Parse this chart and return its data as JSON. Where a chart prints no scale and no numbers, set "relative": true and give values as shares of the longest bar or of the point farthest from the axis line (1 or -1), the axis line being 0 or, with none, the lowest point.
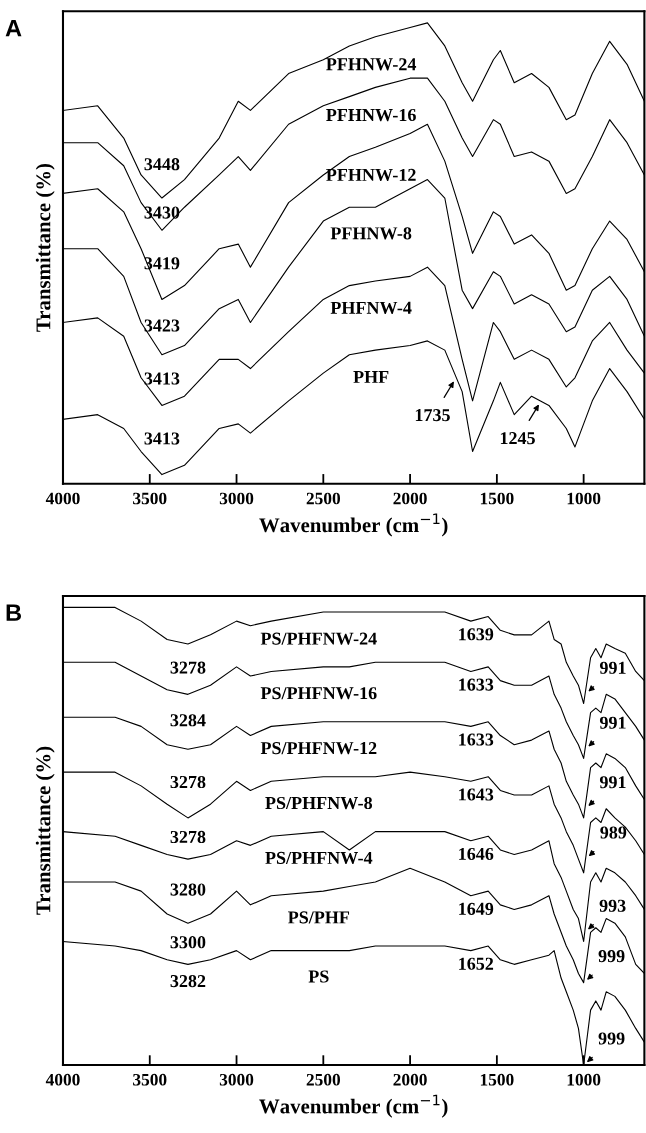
{
  "chart_data": [
    {
      "type": "line",
      "title": "A",
      "xlabel": "Wavenumber (cm$^{−1}$)",
      "ylabel": "Transmittance (%)",
      "relative": true,
      "tick_labels": "x",
      "xlim": [
        4000,
        650
      ],
      "xticks": [
        4000,
        3500,
        3000,
        2500,
        2000,
        1500,
        1000
      ],
      "x": [
        4000,
        3800,
        3650,
        3550,
        3430,
        3300,
        3100,
        2990,
        2920,
        2700,
        2500,
        2350,
        2200,
        2000,
        1900,
        1800,
        1700,
        1640,
        1520,
        1480,
        1400,
        1300,
        1200,
        1100,
        1050,
        950,
        850,
        750,
        650
      ],
      "series": [
        {
          "name": "PFHNW-24",
          "color": "#000000",
          "values": [
            0.81,
            0.82,
            0.75,
            0.67,
            0.62,
            0.66,
            0.75,
            0.83,
            0.81,
            0.89,
            0.92,
            0.95,
            0.97,
            0.99,
            1.0,
            0.95,
            0.87,
            0.83,
            0.92,
            0.94,
            0.87,
            0.89,
            0.86,
            0.79,
            0.8,
            0.89,
            0.96,
            0.91,
            0.83
          ]
        },
        {
          "name": "PFHNW-16",
          "color": "#000000",
          "values": [
            0.74,
            0.74,
            0.69,
            0.61,
            0.55,
            0.6,
            0.67,
            0.71,
            0.68,
            0.78,
            0.82,
            0.84,
            0.86,
            0.88,
            0.88,
            0.83,
            0.75,
            0.71,
            0.79,
            0.78,
            0.71,
            0.72,
            0.7,
            0.63,
            0.64,
            0.71,
            0.79,
            0.74,
            0.67
          ]
        },
        {
          "name": "PFHNW-12",
          "color": "#000000",
          "values": [
            0.63,
            0.64,
            0.59,
            0.51,
            0.4,
            0.43,
            0.51,
            0.52,
            0.47,
            0.61,
            0.67,
            0.71,
            0.73,
            0.76,
            0.78,
            0.7,
            0.58,
            0.5,
            0.59,
            0.58,
            0.52,
            0.54,
            0.5,
            0.42,
            0.43,
            0.51,
            0.57,
            0.53,
            0.46
          ]
        },
        {
          "name": "PFHNW-8",
          "color": "#000000",
          "values": [
            0.51,
            0.51,
            0.45,
            0.35,
            0.28,
            0.3,
            0.38,
            0.4,
            0.35,
            0.47,
            0.57,
            0.6,
            0.6,
            0.64,
            0.66,
            0.62,
            0.42,
            0.38,
            0.46,
            0.45,
            0.39,
            0.41,
            0.39,
            0.33,
            0.34,
            0.42,
            0.45,
            0.4,
            0.32
          ]
        },
        {
          "name": "PHFNW-4",
          "color": "#000000",
          "values": [
            0.35,
            0.36,
            0.32,
            0.23,
            0.17,
            0.19,
            0.27,
            0.27,
            0.25,
            0.33,
            0.4,
            0.43,
            0.44,
            0.45,
            0.47,
            0.43,
            0.27,
            0.18,
            0.35,
            0.33,
            0.27,
            0.29,
            0.27,
            0.21,
            0.23,
            0.31,
            0.35,
            0.29,
            0.24
          ]
        },
        {
          "name": "PHF",
          "color": "#000000",
          "values": [
            0.14,
            0.15,
            0.12,
            0.07,
            0.02,
            0.04,
            0.12,
            0.13,
            0.11,
            0.18,
            0.24,
            0.28,
            0.29,
            0.3,
            0.31,
            0.29,
            0.2,
            0.07,
            0.18,
            0.22,
            0.15,
            0.19,
            0.17,
            0.12,
            0.08,
            0.18,
            0.25,
            0.2,
            0.14
          ]
        }
      ],
      "annotations": [
        "3448",
        "3430",
        "3419",
        "3423",
        "3413",
        "3413",
        {
          "text": "1735",
          "x": 1735,
          "y": 0.23
        },
        {
          "text": "1245",
          "x": 1245,
          "y": 0.18
        }
      ]
    },
    {
      "type": "line",
      "title": "B",
      "xlabel": "Wavenumber (cm$^{−1}$)",
      "ylabel": "Transmittance (%)",
      "relative": true,
      "tick_labels": "x",
      "xlim": [
        4000,
        650
      ],
      "xticks": [
        4000,
        3500,
        3000,
        2500,
        2000,
        1500,
        1000
      ],
      "x": [
        4000,
        3700,
        3550,
        3400,
        3280,
        3150,
        3000,
        2920,
        2800,
        2500,
        2350,
        2200,
        2000,
        1800,
        1650,
        1550,
        1480,
        1400,
        1300,
        1200,
        1170,
        1130,
        1100,
        1060,
        1030,
        1000,
        960,
        930,
        900,
        870,
        820,
        760,
        700,
        650
      ],
      "series": [
        {
          "name": "PS/PHFNW-24",
          "color": "#000000",
          "values": [
            1.0,
            1.0,
            0.97,
            0.93,
            0.92,
            0.94,
            0.97,
            0.96,
            0.97,
            0.99,
            0.99,
            0.99,
            0.99,
            0.99,
            0.97,
            0.98,
            0.95,
            0.94,
            0.94,
            0.97,
            0.93,
            0.92,
            0.88,
            0.85,
            0.83,
            0.79,
            0.89,
            0.91,
            0.89,
            0.92,
            0.91,
            0.9,
            0.86,
            0.84
          ]
        },
        {
          "name": "PS/PHFNW-16",
          "color": "#000000",
          "values": [
            0.88,
            0.88,
            0.85,
            0.82,
            0.81,
            0.83,
            0.87,
            0.85,
            0.86,
            0.87,
            0.87,
            0.88,
            0.88,
            0.88,
            0.86,
            0.87,
            0.84,
            0.83,
            0.83,
            0.85,
            0.81,
            0.78,
            0.75,
            0.72,
            0.7,
            0.67,
            0.77,
            0.78,
            0.77,
            0.81,
            0.8,
            0.77,
            0.74,
            0.71
          ]
        },
        {
          "name": "PS/PHFNW-12",
          "color": "#000000",
          "values": [
            0.76,
            0.76,
            0.74,
            0.7,
            0.69,
            0.7,
            0.74,
            0.72,
            0.74,
            0.75,
            0.75,
            0.75,
            0.75,
            0.75,
            0.74,
            0.75,
            0.72,
            0.7,
            0.71,
            0.73,
            0.69,
            0.66,
            0.62,
            0.59,
            0.57,
            0.54,
            0.65,
            0.66,
            0.65,
            0.68,
            0.67,
            0.65,
            0.61,
            0.58
          ]
        },
        {
          "name": "PS/PHFNW-8",
          "color": "#000000",
          "values": [
            0.64,
            0.64,
            0.61,
            0.57,
            0.54,
            0.57,
            0.62,
            0.6,
            0.62,
            0.63,
            0.63,
            0.63,
            0.64,
            0.63,
            0.62,
            0.63,
            0.6,
            0.59,
            0.59,
            0.61,
            0.57,
            0.54,
            0.51,
            0.48,
            0.45,
            0.42,
            0.53,
            0.54,
            0.53,
            0.56,
            0.54,
            0.52,
            0.49,
            0.46
          ]
        },
        {
          "name": "PS/PHFNW-4",
          "color": "#000000",
          "values": [
            0.51,
            0.5,
            0.48,
            0.46,
            0.45,
            0.46,
            0.49,
            0.48,
            0.5,
            0.51,
            0.47,
            0.51,
            0.51,
            0.51,
            0.49,
            0.5,
            0.47,
            0.46,
            0.47,
            0.49,
            0.44,
            0.41,
            0.38,
            0.34,
            0.32,
            0.27,
            0.4,
            0.42,
            0.4,
            0.43,
            0.42,
            0.4,
            0.37,
            0.34
          ]
        },
        {
          "name": "PS/PHF",
          "color": "#000000",
          "values": [
            0.4,
            0.4,
            0.38,
            0.33,
            0.31,
            0.33,
            0.38,
            0.35,
            0.37,
            0.38,
            0.39,
            0.4,
            0.43,
            0.4,
            0.37,
            0.38,
            0.35,
            0.34,
            0.35,
            0.37,
            0.33,
            0.29,
            0.26,
            0.23,
            0.2,
            0.18,
            0.29,
            0.3,
            0.29,
            0.32,
            0.31,
            0.28,
            0.22,
            0.2
          ]
        },
        {
          "name": "PS",
          "color": "#000000",
          "values": [
            0.27,
            0.26,
            0.25,
            0.23,
            0.22,
            0.23,
            0.25,
            0.23,
            0.25,
            0.25,
            0.25,
            0.26,
            0.26,
            0.26,
            0.25,
            0.26,
            0.23,
            0.22,
            0.23,
            0.24,
            0.25,
            0.19,
            0.16,
            0.12,
            0.08,
            0.0,
            0.12,
            0.14,
            0.12,
            0.16,
            0.15,
            0.12,
            0.08,
            0.05
          ]
        }
      ],
      "annotations": [
        "3278",
        "3284",
        "3278",
        "3278",
        "3280",
        "3300",
        "3282",
        "1639",
        "1633",
        "1633",
        "1643",
        "1646",
        "1649",
        "1652",
        {
          "text": "991",
          "x": 991,
          "y": 0.81
        },
        {
          "text": "991",
          "x": 991,
          "y": 0.69
        },
        {
          "text": "991",
          "x": 991,
          "y": 0.56
        },
        {
          "text": "989",
          "x": 989,
          "y": 0.45
        },
        {
          "text": "993",
          "x": 993,
          "y": 0.29
        },
        {
          "text": "999",
          "x": 999,
          "y": 0.18
        },
        {
          "text": "999",
          "x": 999,
          "y": 0.0
        }
      ]
    }
  ]
}
